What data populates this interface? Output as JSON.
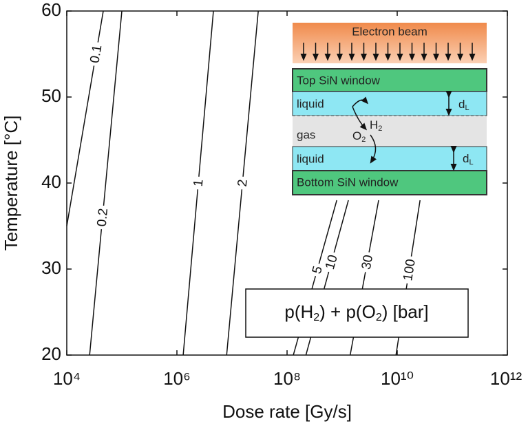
{
  "chart_data": {
    "type": "contour",
    "xlabel": "Dose rate [Gy/s]",
    "ylabel": "Temperature [°C]",
    "xscale": "log",
    "xlim": [
      10000,
      1000000000000
    ],
    "ylim": [
      20,
      60
    ],
    "xticks": [
      {
        "value": 10000,
        "label": "10⁴"
      },
      {
        "value": 1000000,
        "label": "10⁶"
      },
      {
        "value": 100000000,
        "label": "10⁸"
      },
      {
        "value": 10000000000,
        "label": "10¹⁰"
      },
      {
        "value": 1000000000000,
        "label": "10¹²"
      }
    ],
    "yticks": [
      20,
      30,
      40,
      50,
      60
    ],
    "color": "#111111",
    "series": [
      {
        "name": "0.1",
        "x": [
          10000,
          46000
        ],
        "values": [
          35,
          60
        ]
      },
      {
        "name": "0.2",
        "x": [
          26000,
          100000
        ],
        "values": [
          20,
          60
        ]
      },
      {
        "name": "1",
        "x": [
          1300000,
          4600000
        ],
        "values": [
          20,
          60
        ]
      },
      {
        "name": "2",
        "x": [
          8000000,
          30000000
        ],
        "values": [
          20,
          60
        ]
      },
      {
        "name": "5",
        "x": [
          130000000,
          800000000
        ],
        "values": [
          20,
          38
        ]
      },
      {
        "name": "10",
        "x": [
          220000000,
          1300000000
        ],
        "values": [
          20,
          38
        ]
      },
      {
        "name": "30",
        "x": [
          1400000000,
          4600000000
        ],
        "values": [
          20,
          38
        ]
      },
      {
        "name": "100",
        "x": [
          9500000000,
          26000000000
        ],
        "values": [
          20,
          38
        ]
      }
    ],
    "annotation": [
      "p(H",
      "2",
      ") + p(O",
      "2",
      ") [bar]"
    ],
    "inset": {
      "beam": "Electron beam",
      "top_window": "Top SiN window",
      "liquid_top": "liquid",
      "gas": "gas",
      "liquid_bottom": "liquid",
      "bottom_window": "Bottom SiN window",
      "thickness": [
        "d",
        "L"
      ],
      "o2": [
        "O",
        "2"
      ],
      "h2": [
        "H",
        "2"
      ]
    }
  }
}
